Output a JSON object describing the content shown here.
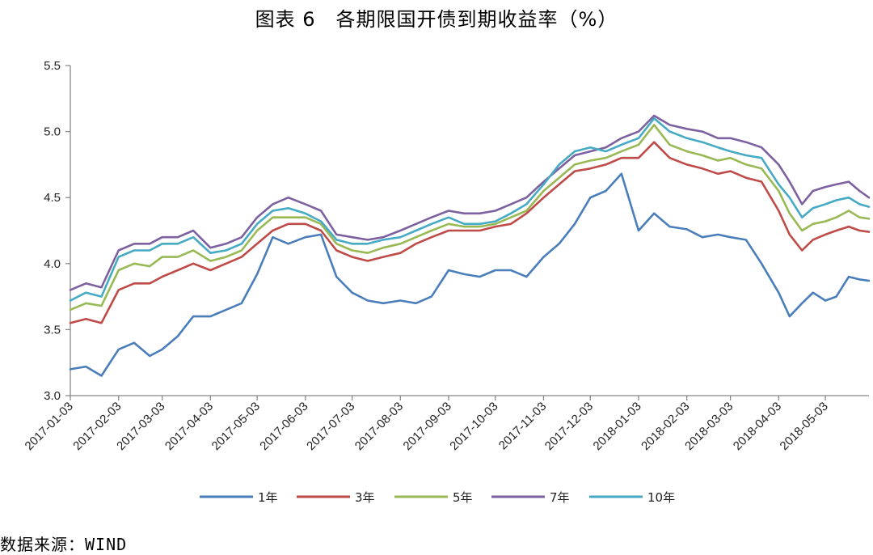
{
  "title": "图表 6　各期限国开债到期收益率（%）",
  "source": "数据来源：WIND",
  "chart_data": {
    "type": "line",
    "title": "图表 6　各期限国开债到期收益率（%）",
    "xlabel": "",
    "ylabel": "",
    "ylim": [
      3.0,
      5.5
    ],
    "yticks": [
      "3.0",
      "3.5",
      "4.0",
      "4.5",
      "5.0",
      "5.5"
    ],
    "xlim": [
      "2017-01-03",
      "2018-05-31"
    ],
    "xtick_labels": [
      "2017-01-03",
      "2017-02-03",
      "2017-03-03",
      "2017-04-03",
      "2017-05-03",
      "2017-06-03",
      "2017-07-03",
      "2017-08-03",
      "2017-09-03",
      "2017-10-03",
      "2017-11-03",
      "2017-12-03",
      "2018-01-03",
      "2018-02-03",
      "2018-03-03",
      "2018-04-03",
      "2018-05-03"
    ],
    "grid": false,
    "legend_position": "bottom",
    "colors": [
      "#4a7ebb",
      "#be4b48",
      "#98b954",
      "#7d60a0",
      "#46aac5"
    ],
    "x": [
      "2017-01-03",
      "2017-01-13",
      "2017-01-23",
      "2017-02-03",
      "2017-02-13",
      "2017-02-23",
      "2017-03-03",
      "2017-03-13",
      "2017-03-23",
      "2017-04-03",
      "2017-04-13",
      "2017-04-23",
      "2017-05-03",
      "2017-05-13",
      "2017-05-23",
      "2017-06-03",
      "2017-06-13",
      "2017-06-23",
      "2017-07-03",
      "2017-07-13",
      "2017-07-23",
      "2017-08-03",
      "2017-08-13",
      "2017-08-23",
      "2017-09-03",
      "2017-09-13",
      "2017-09-23",
      "2017-10-03",
      "2017-10-13",
      "2017-10-23",
      "2017-11-03",
      "2017-11-13",
      "2017-11-23",
      "2017-12-03",
      "2017-12-13",
      "2017-12-23",
      "2018-01-03",
      "2018-01-13",
      "2018-01-23",
      "2018-02-03",
      "2018-02-13",
      "2018-02-23",
      "2018-03-03",
      "2018-03-13",
      "2018-03-23",
      "2018-04-03",
      "2018-04-10",
      "2018-04-18",
      "2018-04-25",
      "2018-05-03",
      "2018-05-10",
      "2018-05-18",
      "2018-05-25",
      "2018-05-31"
    ],
    "series": [
      {
        "name": "1年",
        "values": [
          3.2,
          3.22,
          3.15,
          3.35,
          3.4,
          3.3,
          3.35,
          3.45,
          3.6,
          3.6,
          3.65,
          3.7,
          3.92,
          4.2,
          4.15,
          4.2,
          4.22,
          3.9,
          3.78,
          3.72,
          3.7,
          3.72,
          3.7,
          3.75,
          3.95,
          3.92,
          3.9,
          3.95,
          3.95,
          3.9,
          4.05,
          4.15,
          4.3,
          4.5,
          4.55,
          4.68,
          4.25,
          4.38,
          4.28,
          4.26,
          4.2,
          4.22,
          4.2,
          4.18,
          4.0,
          3.78,
          3.6,
          3.7,
          3.78,
          3.72,
          3.75,
          3.9,
          3.88,
          3.87
        ]
      },
      {
        "name": "3年",
        "values": [
          3.55,
          3.58,
          3.55,
          3.8,
          3.85,
          3.85,
          3.9,
          3.95,
          4.0,
          3.95,
          4.0,
          4.05,
          4.15,
          4.25,
          4.3,
          4.3,
          4.25,
          4.1,
          4.05,
          4.02,
          4.05,
          4.08,
          4.15,
          4.2,
          4.25,
          4.25,
          4.25,
          4.28,
          4.3,
          4.38,
          4.5,
          4.6,
          4.7,
          4.72,
          4.75,
          4.8,
          4.8,
          4.92,
          4.8,
          4.75,
          4.72,
          4.68,
          4.7,
          4.65,
          4.62,
          4.4,
          4.22,
          4.1,
          4.18,
          4.22,
          4.25,
          4.28,
          4.25,
          4.24
        ]
      },
      {
        "name": "5年",
        "values": [
          3.65,
          3.7,
          3.68,
          3.95,
          4.0,
          3.98,
          4.05,
          4.05,
          4.1,
          4.02,
          4.05,
          4.1,
          4.25,
          4.35,
          4.35,
          4.35,
          4.3,
          4.15,
          4.1,
          4.08,
          4.12,
          4.15,
          4.2,
          4.25,
          4.3,
          4.28,
          4.28,
          4.3,
          4.35,
          4.4,
          4.55,
          4.65,
          4.75,
          4.78,
          4.8,
          4.85,
          4.9,
          5.05,
          4.9,
          4.85,
          4.82,
          4.78,
          4.8,
          4.75,
          4.72,
          4.55,
          4.38,
          4.25,
          4.3,
          4.32,
          4.35,
          4.4,
          4.35,
          4.34
        ]
      },
      {
        "name": "7年",
        "values": [
          3.8,
          3.85,
          3.82,
          4.1,
          4.15,
          4.15,
          4.2,
          4.2,
          4.25,
          4.12,
          4.15,
          4.2,
          4.35,
          4.45,
          4.5,
          4.45,
          4.4,
          4.22,
          4.2,
          4.18,
          4.2,
          4.25,
          4.3,
          4.35,
          4.4,
          4.38,
          4.38,
          4.4,
          4.45,
          4.5,
          4.62,
          4.72,
          4.82,
          4.85,
          4.88,
          4.95,
          5.0,
          5.12,
          5.05,
          5.02,
          5.0,
          4.95,
          4.95,
          4.92,
          4.88,
          4.75,
          4.62,
          4.45,
          4.55,
          4.58,
          4.6,
          4.62,
          4.55,
          4.5
        ]
      },
      {
        "name": "10年",
        "values": [
          3.72,
          3.78,
          3.75,
          4.05,
          4.1,
          4.1,
          4.15,
          4.15,
          4.2,
          4.08,
          4.1,
          4.15,
          4.3,
          4.4,
          4.42,
          4.38,
          4.32,
          4.18,
          4.15,
          4.15,
          4.18,
          4.2,
          4.25,
          4.3,
          4.35,
          4.3,
          4.3,
          4.32,
          4.38,
          4.45,
          4.6,
          4.75,
          4.85,
          4.88,
          4.85,
          4.9,
          4.95,
          5.1,
          5.0,
          4.95,
          4.92,
          4.88,
          4.85,
          4.82,
          4.8,
          4.6,
          4.5,
          4.35,
          4.42,
          4.45,
          4.48,
          4.5,
          4.45,
          4.43
        ]
      }
    ]
  }
}
